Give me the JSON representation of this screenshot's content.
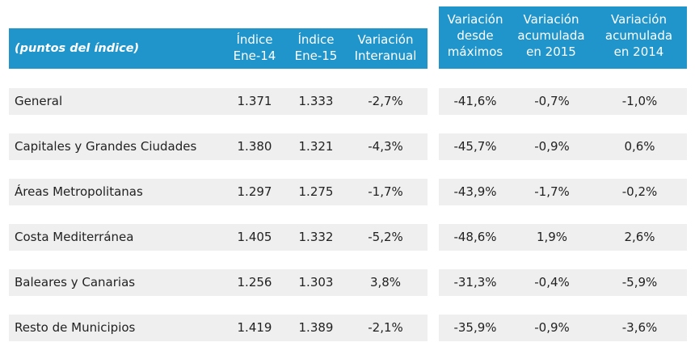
{
  "table": {
    "header_title": "(puntos del índice)",
    "headers": [
      "Índice\nEne-14",
      "Índice\nEne-15",
      "Variación\nInteranual",
      "Variación\ndesde\nmáximos",
      "Variación\nacumulada\nen 2015",
      "Variación\nacumulada\nen 2014"
    ],
    "rows": [
      {
        "label": "General",
        "indice_ene14": "1.371",
        "indice_ene15": "1.333",
        "var_interanual": "-2,7%",
        "var_maximos": "-41,6%",
        "var_2015": "-0,7%",
        "var_2014": "-1,0%"
      },
      {
        "label": "Capitales y Grandes Ciudades",
        "indice_ene14": "1.380",
        "indice_ene15": "1.321",
        "var_interanual": "-4,3%",
        "var_maximos": "-45,7%",
        "var_2015": "-0,9%",
        "var_2014": "0,6%"
      },
      {
        "label": "Áreas Metropolitanas",
        "indice_ene14": "1.297",
        "indice_ene15": "1.275",
        "var_interanual": "-1,7%",
        "var_maximos": "-43,9%",
        "var_2015": "-1,7%",
        "var_2014": "-0,2%"
      },
      {
        "label": "Costa Mediterránea",
        "indice_ene14": "1.405",
        "indice_ene15": "1.332",
        "var_interanual": "-5,2%",
        "var_maximos": "-48,6%",
        "var_2015": "1,9%",
        "var_2014": "2,6%"
      },
      {
        "label": "Baleares y Canarias",
        "indice_ene14": "1.256",
        "indice_ene15": "1.303",
        "var_interanual": "3,8%",
        "var_maximos": "-31,3%",
        "var_2015": "-0,4%",
        "var_2014": "-5,9%"
      },
      {
        "label": "Resto de Municipios",
        "indice_ene14": "1.419",
        "indice_ene15": "1.389",
        "var_interanual": "-2,1%",
        "var_maximos": "-35,9%",
        "var_2015": "-0,9%",
        "var_2014": "-3,6%"
      }
    ]
  },
  "colors": {
    "header_bg": "#1f95cc",
    "header_text": "#ffffff",
    "row_bg": "#efefef",
    "text": "#222222"
  }
}
